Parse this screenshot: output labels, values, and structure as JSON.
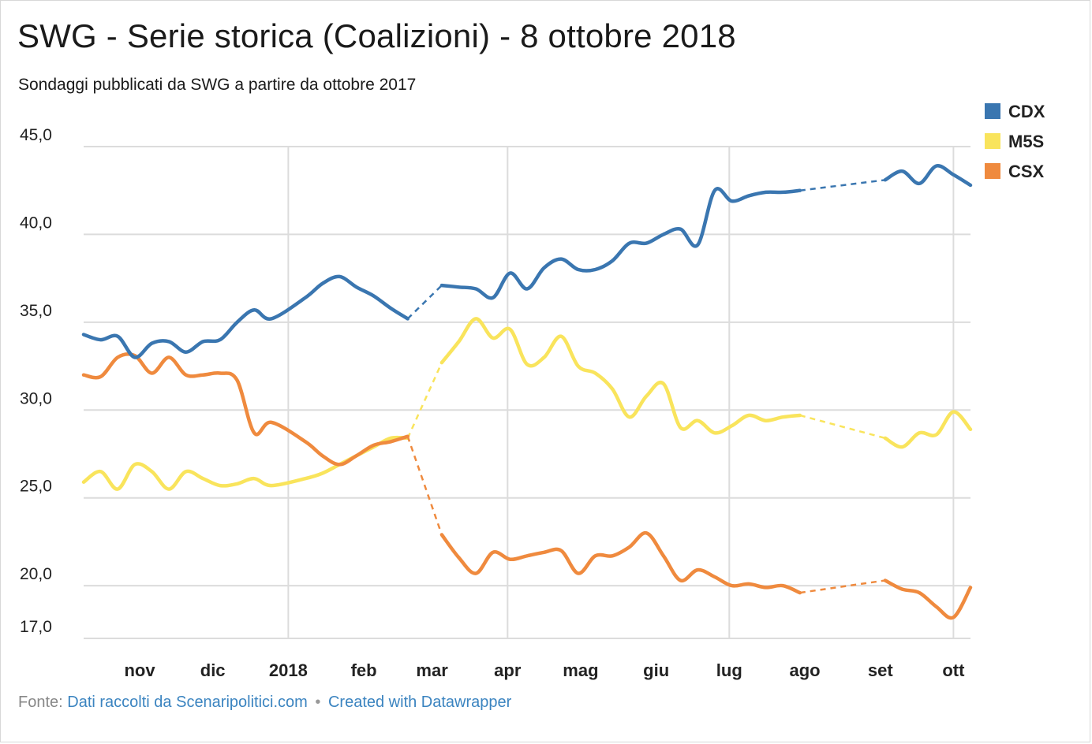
{
  "title": "SWG - Serie storica (Coalizioni) - 8 ottobre 2018",
  "subtitle": "Sondaggi pubblicati da SWG a partire da ottobre 2017",
  "footer": {
    "source_label": "Fonte:",
    "source_link": "Dati raccolti da Scenaripolitici.com",
    "separator": "•",
    "credit_link": "Created with Datawrapper"
  },
  "colors": {
    "CDX": "#3a76b0",
    "M5S": "#f9e45c",
    "CSX": "#ef8a3e",
    "grid": "#dcdcdc"
  },
  "chart_data": {
    "type": "line",
    "ylim": [
      17,
      45
    ],
    "yticks": [
      {
        "value": 45,
        "label": "45,0"
      },
      {
        "value": 40,
        "label": "40,0"
      },
      {
        "value": 35,
        "label": "35,0"
      },
      {
        "value": 30,
        "label": "30,0"
      },
      {
        "value": 25,
        "label": "25,0"
      },
      {
        "value": 20,
        "label": "20,0"
      },
      {
        "value": 17,
        "label": "17,0"
      }
    ],
    "xlim": [
      "2017-10-09",
      "2018-10-08"
    ],
    "xticks": [
      {
        "date": "2017-11-01",
        "label": "nov"
      },
      {
        "date": "2017-12-01",
        "label": "dic"
      },
      {
        "date": "2018-01-01",
        "label": "2018"
      },
      {
        "date": "2018-02-01",
        "label": "feb"
      },
      {
        "date": "2018-03-01",
        "label": "mar"
      },
      {
        "date": "2018-04-01",
        "label": "apr"
      },
      {
        "date": "2018-05-01",
        "label": "mag"
      },
      {
        "date": "2018-06-01",
        "label": "giu"
      },
      {
        "date": "2018-07-01",
        "label": "lug"
      },
      {
        "date": "2018-08-01",
        "label": "ago"
      },
      {
        "date": "2018-09-01",
        "label": "set"
      },
      {
        "date": "2018-10-01",
        "label": "ott"
      }
    ],
    "vgrid": [
      "2018-01-01",
      "2018-04-01",
      "2018-07-01",
      "2018-10-01"
    ],
    "dashed_gaps": [
      [
        "2018-02-19",
        "2018-03-05"
      ],
      [
        "2018-07-30",
        "2018-09-03"
      ]
    ],
    "legend": "top-right",
    "series": [
      {
        "name": "CDX",
        "points": [
          [
            "2017-10-09",
            34.3
          ],
          [
            "2017-10-16",
            34.0
          ],
          [
            "2017-10-23",
            34.2
          ],
          [
            "2017-10-30",
            33.0
          ],
          [
            "2017-11-06",
            33.8
          ],
          [
            "2017-11-13",
            33.9
          ],
          [
            "2017-11-20",
            33.3
          ],
          [
            "2017-11-27",
            33.9
          ],
          [
            "2017-12-04",
            34.0
          ],
          [
            "2017-12-11",
            35.0
          ],
          [
            "2017-12-18",
            35.7
          ],
          [
            "2017-12-25",
            35.2
          ],
          [
            "2018-01-08",
            36.4
          ],
          [
            "2018-01-15",
            37.2
          ],
          [
            "2018-01-22",
            37.6
          ],
          [
            "2018-01-29",
            37.0
          ],
          [
            "2018-02-05",
            36.5
          ],
          [
            "2018-02-12",
            35.8
          ],
          [
            "2018-02-19",
            35.2
          ],
          [
            "2018-03-05",
            37.1
          ],
          [
            "2018-03-12",
            37.0
          ],
          [
            "2018-03-19",
            36.9
          ],
          [
            "2018-03-26",
            36.4
          ],
          [
            "2018-04-02",
            37.8
          ],
          [
            "2018-04-09",
            36.9
          ],
          [
            "2018-04-16",
            38.1
          ],
          [
            "2018-04-23",
            38.6
          ],
          [
            "2018-04-30",
            38.0
          ],
          [
            "2018-05-07",
            38.0
          ],
          [
            "2018-05-14",
            38.5
          ],
          [
            "2018-05-21",
            39.5
          ],
          [
            "2018-05-28",
            39.5
          ],
          [
            "2018-06-04",
            40.0
          ],
          [
            "2018-06-11",
            40.3
          ],
          [
            "2018-06-18",
            39.4
          ],
          [
            "2018-06-25",
            42.5
          ],
          [
            "2018-07-02",
            41.9
          ],
          [
            "2018-07-09",
            42.2
          ],
          [
            "2018-07-16",
            42.4
          ],
          [
            "2018-07-23",
            42.4
          ],
          [
            "2018-07-30",
            42.5
          ],
          [
            "2018-09-03",
            43.1
          ],
          [
            "2018-09-10",
            43.6
          ],
          [
            "2018-09-17",
            42.9
          ],
          [
            "2018-09-24",
            43.9
          ],
          [
            "2018-10-01",
            43.4
          ],
          [
            "2018-10-08",
            42.8
          ]
        ]
      },
      {
        "name": "M5S",
        "points": [
          [
            "2017-10-09",
            25.9
          ],
          [
            "2017-10-16",
            26.5
          ],
          [
            "2017-10-23",
            25.5
          ],
          [
            "2017-10-30",
            26.9
          ],
          [
            "2017-11-06",
            26.5
          ],
          [
            "2017-11-13",
            25.5
          ],
          [
            "2017-11-20",
            26.5
          ],
          [
            "2017-11-27",
            26.1
          ],
          [
            "2017-12-04",
            25.7
          ],
          [
            "2017-12-11",
            25.8
          ],
          [
            "2017-12-18",
            26.1
          ],
          [
            "2017-12-25",
            25.7
          ],
          [
            "2018-01-08",
            26.1
          ],
          [
            "2018-01-15",
            26.4
          ],
          [
            "2018-01-22",
            26.9
          ],
          [
            "2018-01-29",
            27.4
          ],
          [
            "2018-02-05",
            27.9
          ],
          [
            "2018-02-12",
            28.4
          ],
          [
            "2018-02-19",
            28.4
          ],
          [
            "2018-03-05",
            32.7
          ],
          [
            "2018-03-12",
            33.9
          ],
          [
            "2018-03-19",
            35.2
          ],
          [
            "2018-03-26",
            34.1
          ],
          [
            "2018-04-02",
            34.6
          ],
          [
            "2018-04-09",
            32.6
          ],
          [
            "2018-04-16",
            33.0
          ],
          [
            "2018-04-23",
            34.2
          ],
          [
            "2018-04-30",
            32.5
          ],
          [
            "2018-05-07",
            32.1
          ],
          [
            "2018-05-14",
            31.2
          ],
          [
            "2018-05-21",
            29.6
          ],
          [
            "2018-05-28",
            30.8
          ],
          [
            "2018-06-04",
            31.5
          ],
          [
            "2018-06-11",
            29.0
          ],
          [
            "2018-06-18",
            29.4
          ],
          [
            "2018-06-25",
            28.7
          ],
          [
            "2018-07-02",
            29.1
          ],
          [
            "2018-07-09",
            29.7
          ],
          [
            "2018-07-16",
            29.4
          ],
          [
            "2018-07-23",
            29.6
          ],
          [
            "2018-07-30",
            29.7
          ],
          [
            "2018-09-03",
            28.4
          ],
          [
            "2018-09-10",
            27.9
          ],
          [
            "2018-09-17",
            28.7
          ],
          [
            "2018-09-24",
            28.6
          ],
          [
            "2018-10-01",
            29.9
          ],
          [
            "2018-10-08",
            28.9
          ]
        ]
      },
      {
        "name": "CSX",
        "points": [
          [
            "2017-10-09",
            32.0
          ],
          [
            "2017-10-16",
            31.9
          ],
          [
            "2017-10-23",
            33.0
          ],
          [
            "2017-10-30",
            33.1
          ],
          [
            "2017-11-06",
            32.1
          ],
          [
            "2017-11-13",
            33.0
          ],
          [
            "2017-11-20",
            32.0
          ],
          [
            "2017-11-27",
            32.0
          ],
          [
            "2017-12-04",
            32.1
          ],
          [
            "2017-12-11",
            31.7
          ],
          [
            "2017-12-18",
            28.7
          ],
          [
            "2017-12-25",
            29.3
          ],
          [
            "2018-01-08",
            28.2
          ],
          [
            "2018-01-15",
            27.4
          ],
          [
            "2018-01-22",
            26.9
          ],
          [
            "2018-01-29",
            27.4
          ],
          [
            "2018-02-05",
            28.0
          ],
          [
            "2018-02-12",
            28.2
          ],
          [
            "2018-02-19",
            28.5
          ],
          [
            "2018-03-05",
            22.9
          ],
          [
            "2018-03-12",
            21.6
          ],
          [
            "2018-03-19",
            20.7
          ],
          [
            "2018-03-26",
            21.9
          ],
          [
            "2018-04-02",
            21.5
          ],
          [
            "2018-04-09",
            21.7
          ],
          [
            "2018-04-16",
            21.9
          ],
          [
            "2018-04-23",
            22.0
          ],
          [
            "2018-04-30",
            20.7
          ],
          [
            "2018-05-07",
            21.7
          ],
          [
            "2018-05-14",
            21.7
          ],
          [
            "2018-05-21",
            22.2
          ],
          [
            "2018-05-28",
            23.0
          ],
          [
            "2018-06-04",
            21.7
          ],
          [
            "2018-06-11",
            20.3
          ],
          [
            "2018-06-18",
            20.9
          ],
          [
            "2018-06-25",
            20.5
          ],
          [
            "2018-07-02",
            20.0
          ],
          [
            "2018-07-09",
            20.1
          ],
          [
            "2018-07-16",
            19.9
          ],
          [
            "2018-07-23",
            20.0
          ],
          [
            "2018-07-30",
            19.6
          ],
          [
            "2018-09-03",
            20.3
          ],
          [
            "2018-09-10",
            19.8
          ],
          [
            "2018-09-17",
            19.6
          ],
          [
            "2018-09-24",
            18.8
          ],
          [
            "2018-10-01",
            18.2
          ],
          [
            "2018-10-08",
            19.9
          ]
        ]
      }
    ]
  }
}
